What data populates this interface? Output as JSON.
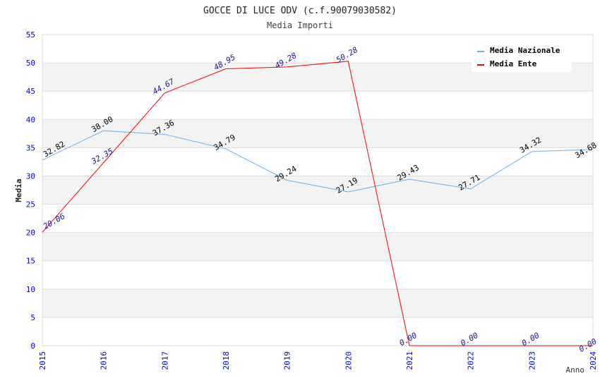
{
  "chart_data": {
    "type": "line",
    "title": "GOCCE DI LUCE ODV (c.f.90079030582)",
    "subtitle": "Media Importi",
    "xlabel": "Anno",
    "ylabel": "Media",
    "ylim": [
      0,
      55
    ],
    "yticks": [
      "0",
      "5",
      "10",
      "15",
      "20",
      "25",
      "30",
      "35",
      "40",
      "45",
      "50",
      "55"
    ],
    "categories": [
      "2015",
      "2016",
      "2017",
      "2018",
      "2019",
      "2020",
      "2021",
      "2022",
      "2023",
      "2024"
    ],
    "grid": true,
    "legend_position": "top-right",
    "series": [
      {
        "name": "Media Nazionale",
        "color": "#6aaef0",
        "label_color": "#000000",
        "values": [
          32.82,
          38.0,
          37.36,
          34.79,
          29.24,
          27.19,
          29.43,
          27.71,
          34.32,
          34.68
        ],
        "labels": [
          "32.82",
          "38.00",
          "37.36",
          "34.79",
          "29.24",
          "27.19",
          "29.43",
          "27.71",
          "34.32",
          "34.68"
        ]
      },
      {
        "name": "Media Ente",
        "color": "#ff0000",
        "label_color": "#1a1a8c",
        "values": [
          20.06,
          32.35,
          44.67,
          48.95,
          49.28,
          50.28,
          0,
          0,
          0,
          0
        ],
        "labels": [
          "20.06",
          "32.35",
          "44.67",
          "48.95",
          "49.28",
          "50.28",
          "0.00",
          "0.00",
          "0.00",
          "0.00"
        ]
      }
    ]
  }
}
